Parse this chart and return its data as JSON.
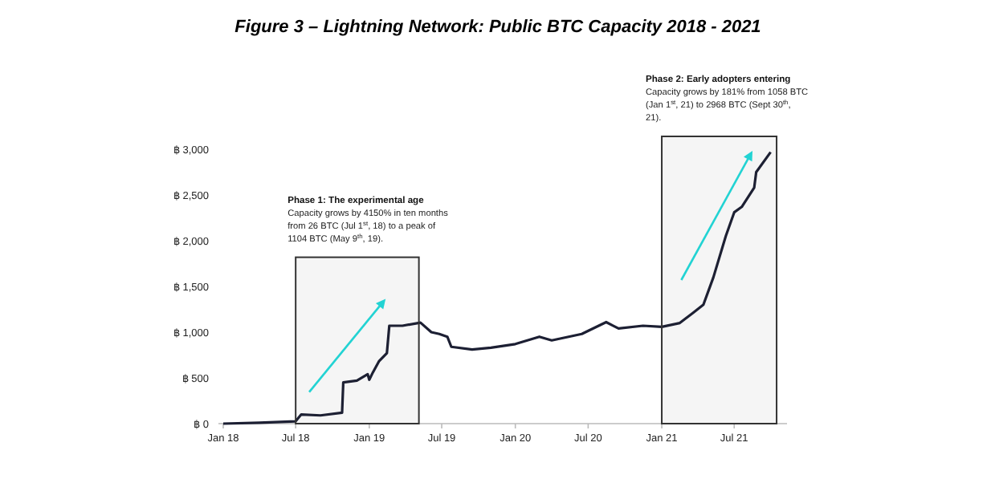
{
  "chart_data": {
    "type": "line",
    "title": "Figure 3 – Lightning Network: Public BTC Capacity 2018 - 2021",
    "x": [
      "2018-01-01",
      "2018-04-01",
      "2018-07-01",
      "2018-07-15",
      "2018-09-01",
      "2018-10-25",
      "2018-10-28",
      "2018-12-01",
      "2018-12-28",
      "2019-01-01",
      "2019-01-10",
      "2019-01-25",
      "2019-02-14",
      "2019-02-20",
      "2019-03-25",
      "2019-05-09",
      "2019-06-05",
      "2019-06-25",
      "2019-07-15",
      "2019-07-25",
      "2019-09-15",
      "2019-11-01",
      "2020-01-01",
      "2020-03-01",
      "2020-04-01",
      "2020-06-15",
      "2020-08-15",
      "2020-09-15",
      "2020-11-15",
      "2021-01-01",
      "2021-02-15",
      "2021-03-20",
      "2021-04-15",
      "2021-05-10",
      "2021-06-10",
      "2021-07-01",
      "2021-07-20",
      "2021-08-20",
      "2021-08-25",
      "2021-09-30"
    ],
    "series": [
      {
        "color": "#1c1f33",
        "values": [
          0,
          10,
          26,
          100,
          90,
          120,
          450,
          470,
          540,
          480,
          560,
          680,
          770,
          1070,
          1070,
          1104,
          1000,
          980,
          950,
          840,
          810,
          830,
          870,
          950,
          910,
          980,
          1110,
          1040,
          1070,
          1058,
          1100,
          1210,
          1300,
          1600,
          2050,
          2310,
          2370,
          2580,
          2750,
          2968
        ]
      }
    ],
    "xlim": [
      "2017-12-20",
      "2021-11-10"
    ],
    "xticks": [
      {
        "value": "2018-01-01",
        "label": "Jan 18"
      },
      {
        "value": "2018-07-01",
        "label": "Jul 18"
      },
      {
        "value": "2019-01-01",
        "label": "Jan 19"
      },
      {
        "value": "2019-07-01",
        "label": "Jul 19"
      },
      {
        "value": "2020-01-01",
        "label": "Jan 20"
      },
      {
        "value": "2020-07-01",
        "label": "Jul 20"
      },
      {
        "value": "2021-01-01",
        "label": "Jan 21"
      },
      {
        "value": "2021-07-01",
        "label": "Jul 21"
      }
    ],
    "ylim": [
      0,
      3000
    ],
    "yticks": [
      {
        "value": 0,
        "label": "฿ 0"
      },
      {
        "value": 500,
        "label": "฿ 500"
      },
      {
        "value": 1000,
        "label": "฿ 1,000"
      },
      {
        "value": 1500,
        "label": "฿ 1,500"
      },
      {
        "value": 2000,
        "label": "฿ 2,000"
      },
      {
        "value": 2500,
        "label": "฿ 2,500"
      },
      {
        "value": 3000,
        "label": "฿ 3,000"
      }
    ],
    "bands": [
      {
        "axis": "x",
        "from": "2018-07-01",
        "to": "2019-05-05",
        "color": "#333333"
      },
      {
        "axis": "x",
        "from": "2021-01-01",
        "to": "2021-10-15",
        "color": "#333333"
      }
    ],
    "annotations": [
      "Phase 1: The experimental age",
      "Capacity grows by 4150% in ten months from 26 BTC (Jul 1$^{st}$, 18) to a peak of 1104 BTC (May 9$^{th}$, 19).",
      "Phase 2: Early adopters entering",
      "Capacity grows by 181% from 1058 BTC (Jan 1$^{st}$, 21) to 2968 BTC (Sept 30$^{th}$, 21)."
    ],
    "line_style": "solid",
    "marker": "none",
    "grid": false
  }
}
